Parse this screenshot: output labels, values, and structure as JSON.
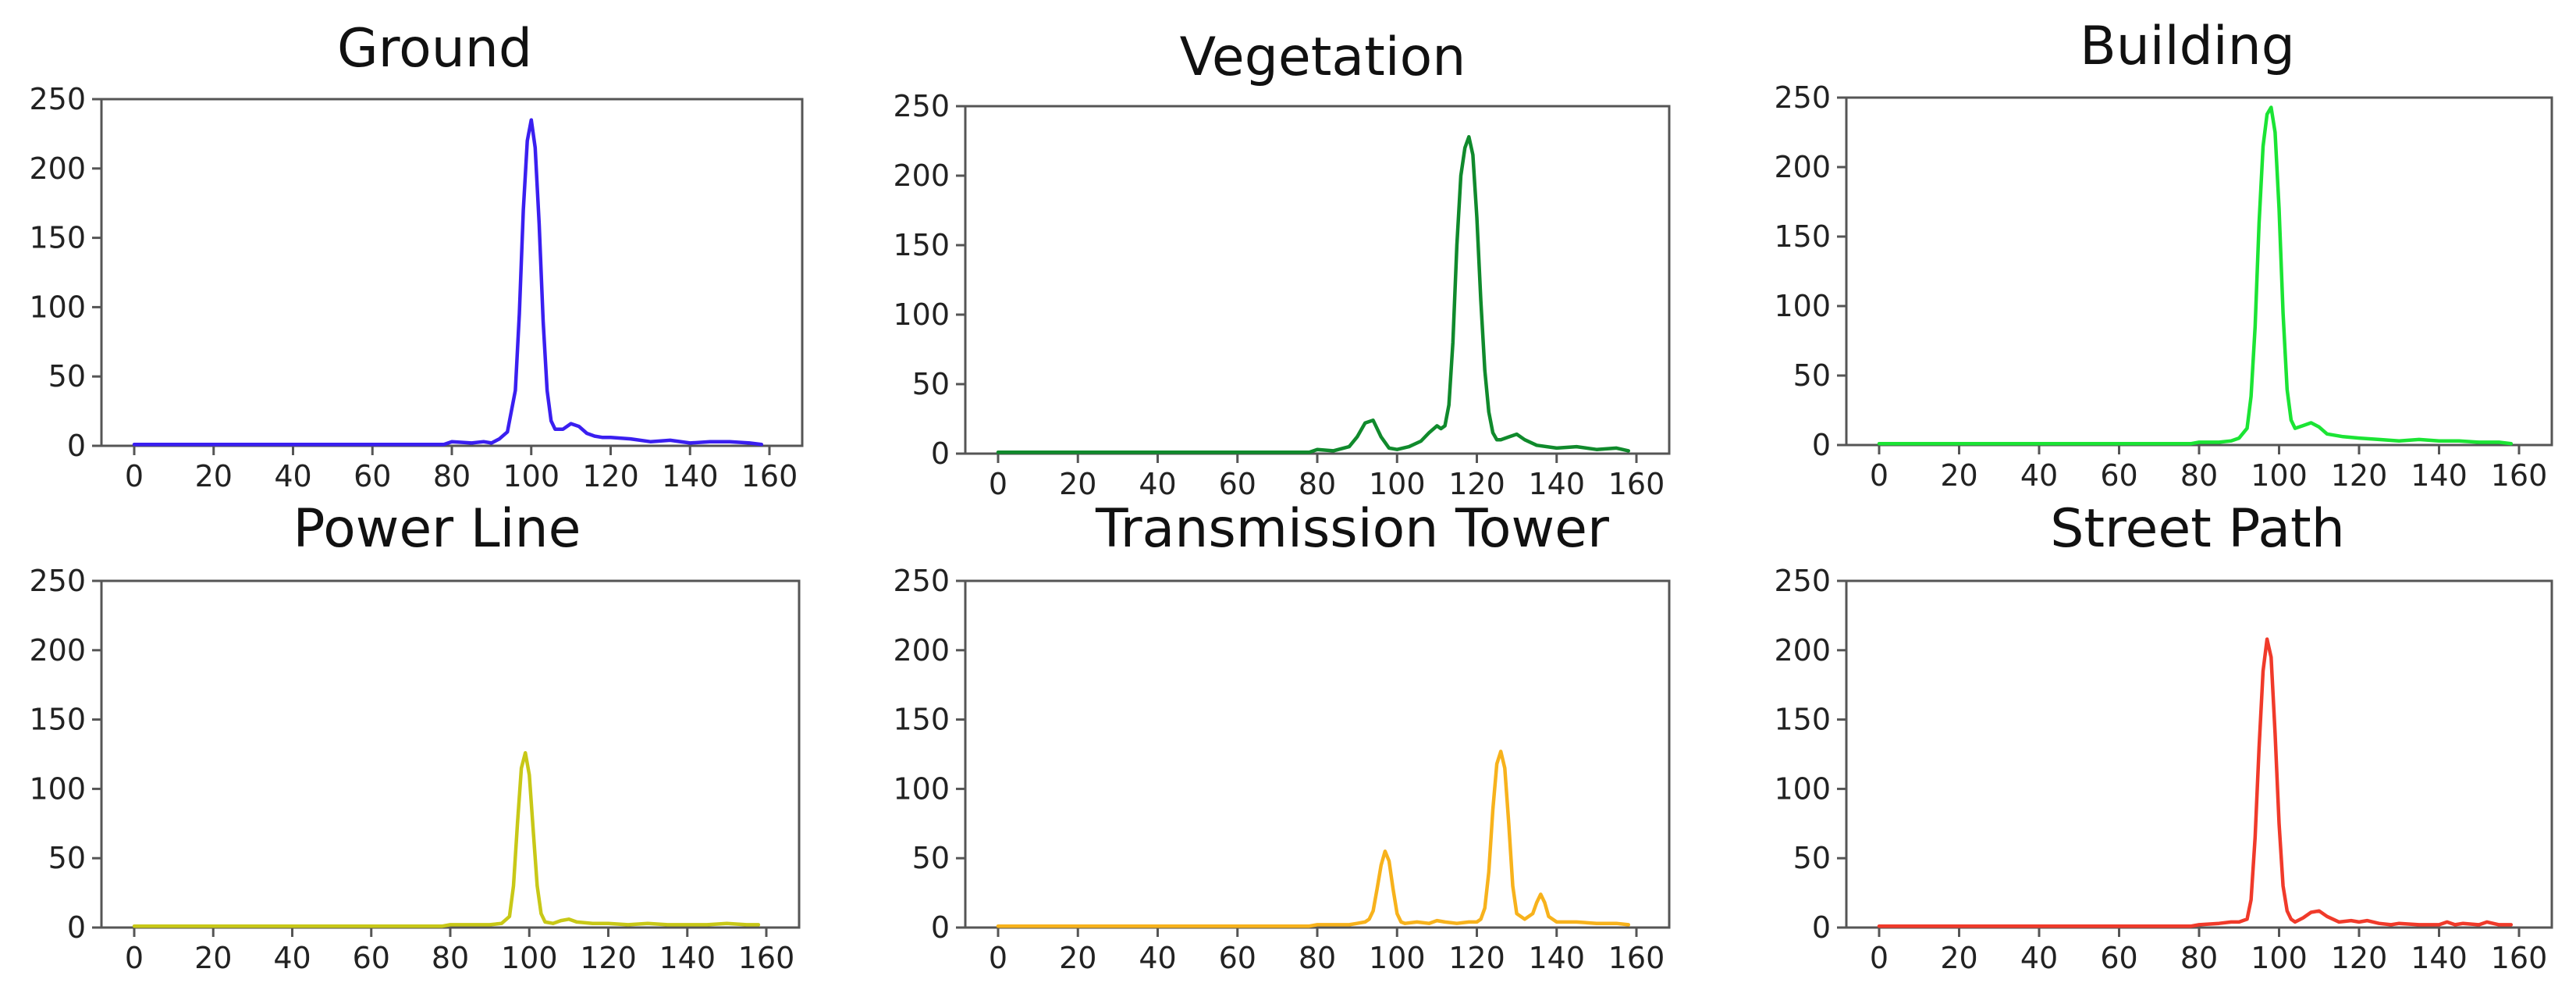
{
  "chart_data": [
    {
      "type": "line",
      "title": "Ground",
      "color": "#3a1ff0",
      "xlim": [
        0,
        160
      ],
      "ylim": [
        0,
        250
      ],
      "xticks": [
        0,
        20,
        40,
        60,
        80,
        100,
        120,
        140,
        160
      ],
      "yticks": [
        0,
        50,
        100,
        150,
        200,
        250
      ],
      "x": [
        0,
        20,
        40,
        60,
        78,
        80,
        85,
        88,
        90,
        92,
        94,
        96,
        97,
        98,
        99,
        100,
        101,
        102,
        103,
        104,
        105,
        106,
        108,
        110,
        112,
        114,
        116,
        118,
        120,
        125,
        130,
        135,
        140,
        145,
        150,
        155,
        158
      ],
      "y": [
        1,
        1,
        1,
        1,
        1,
        3,
        2,
        3,
        2,
        5,
        10,
        40,
        95,
        170,
        220,
        235,
        215,
        160,
        90,
        40,
        18,
        12,
        12,
        16,
        14,
        9,
        7,
        6,
        6,
        5,
        3,
        4,
        2,
        3,
        3,
        2,
        1
      ]
    },
    {
      "type": "line",
      "title": "Vegetation",
      "color": "#108a2c",
      "xlim": [
        0,
        160
      ],
      "ylim": [
        0,
        250
      ],
      "xticks": [
        0,
        20,
        40,
        60,
        80,
        100,
        120,
        140,
        160
      ],
      "yticks": [
        0,
        50,
        100,
        150,
        200,
        250
      ],
      "x": [
        0,
        20,
        40,
        60,
        78,
        80,
        84,
        88,
        90,
        92,
        94,
        96,
        98,
        100,
        103,
        106,
        108,
        110,
        111,
        112,
        113,
        114,
        115,
        116,
        117,
        118,
        119,
        120,
        121,
        122,
        123,
        124,
        125,
        126,
        128,
        130,
        132,
        135,
        140,
        145,
        150,
        155,
        158
      ],
      "y": [
        1,
        1,
        1,
        1,
        1,
        3,
        2,
        5,
        12,
        22,
        24,
        12,
        4,
        3,
        5,
        9,
        15,
        20,
        18,
        20,
        35,
        80,
        150,
        200,
        220,
        228,
        215,
        170,
        110,
        60,
        30,
        15,
        10,
        10,
        12,
        14,
        10,
        6,
        4,
        5,
        3,
        4,
        2
      ]
    },
    {
      "type": "line",
      "title": "Building",
      "color": "#1be434",
      "xlim": [
        0,
        160
      ],
      "ylim": [
        0,
        250
      ],
      "xticks": [
        0,
        20,
        40,
        60,
        80,
        100,
        120,
        140,
        160
      ],
      "yticks": [
        0,
        50,
        100,
        150,
        200,
        250
      ],
      "x": [
        0,
        20,
        40,
        60,
        78,
        80,
        85,
        88,
        90,
        92,
        93,
        94,
        95,
        96,
        97,
        98,
        99,
        100,
        101,
        102,
        103,
        104,
        106,
        108,
        110,
        112,
        116,
        120,
        125,
        130,
        135,
        140,
        145,
        150,
        155,
        158
      ],
      "y": [
        1,
        1,
        1,
        1,
        1,
        2,
        2,
        3,
        5,
        12,
        35,
        85,
        160,
        215,
        238,
        243,
        225,
        170,
        95,
        40,
        18,
        12,
        14,
        16,
        13,
        8,
        6,
        5,
        4,
        3,
        4,
        3,
        3,
        2,
        2,
        1
      ]
    },
    {
      "type": "line",
      "title": "Power Line",
      "color": "#c8c817",
      "xlim": [
        0,
        160
      ],
      "ylim": [
        0,
        250
      ],
      "xticks": [
        0,
        20,
        40,
        60,
        80,
        100,
        120,
        140,
        160
      ],
      "yticks": [
        0,
        50,
        100,
        150,
        200,
        250
      ],
      "x": [
        0,
        20,
        40,
        60,
        78,
        80,
        85,
        90,
        93,
        95,
        96,
        97,
        98,
        99,
        100,
        101,
        102,
        103,
        104,
        106,
        108,
        110,
        112,
        116,
        120,
        125,
        130,
        135,
        140,
        145,
        150,
        155,
        158
      ],
      "y": [
        1,
        1,
        1,
        1,
        1,
        2,
        2,
        2,
        3,
        8,
        30,
        75,
        115,
        126,
        110,
        70,
        30,
        10,
        4,
        3,
        5,
        6,
        4,
        3,
        3,
        2,
        3,
        2,
        2,
        2,
        3,
        2,
        2
      ]
    },
    {
      "type": "line",
      "title": "Transmission Tower",
      "color": "#f7b21c",
      "xlim": [
        0,
        160
      ],
      "ylim": [
        0,
        250
      ],
      "xticks": [
        0,
        20,
        40,
        60,
        80,
        100,
        120,
        140,
        160
      ],
      "yticks": [
        0,
        50,
        100,
        150,
        200,
        250
      ],
      "x": [
        0,
        20,
        40,
        60,
        78,
        80,
        85,
        88,
        90,
        92,
        93,
        94,
        95,
        96,
        97,
        98,
        99,
        100,
        101,
        102,
        105,
        108,
        110,
        112,
        115,
        118,
        120,
        121,
        122,
        123,
        124,
        125,
        126,
        127,
        128,
        129,
        130,
        132,
        134,
        135,
        136,
        137,
        138,
        140,
        145,
        150,
        155,
        158
      ],
      "y": [
        1,
        1,
        1,
        1,
        1,
        2,
        2,
        2,
        3,
        4,
        6,
        12,
        28,
        45,
        55,
        48,
        28,
        10,
        4,
        3,
        4,
        3,
        5,
        4,
        3,
        4,
        4,
        6,
        14,
        40,
        85,
        118,
        127,
        115,
        75,
        30,
        10,
        6,
        10,
        18,
        24,
        18,
        8,
        4,
        4,
        3,
        3,
        2
      ]
    },
    {
      "type": "line",
      "title": "Street Path",
      "color": "#f03a2a",
      "xlim": [
        0,
        160
      ],
      "ylim": [
        0,
        250
      ],
      "xticks": [
        0,
        20,
        40,
        60,
        80,
        100,
        120,
        140,
        160
      ],
      "yticks": [
        0,
        50,
        100,
        150,
        200,
        250
      ],
      "x": [
        0,
        20,
        40,
        60,
        78,
        80,
        85,
        88,
        90,
        92,
        93,
        94,
        95,
        96,
        97,
        98,
        99,
        100,
        101,
        102,
        103,
        104,
        106,
        108,
        110,
        112,
        115,
        118,
        120,
        122,
        125,
        128,
        130,
        135,
        140,
        142,
        144,
        146,
        150,
        152,
        155,
        158
      ],
      "y": [
        1,
        1,
        1,
        1,
        1,
        2,
        3,
        4,
        4,
        6,
        20,
        65,
        130,
        185,
        208,
        195,
        140,
        75,
        30,
        12,
        6,
        4,
        7,
        11,
        12,
        8,
        4,
        5,
        4,
        5,
        3,
        2,
        3,
        2,
        2,
        4,
        2,
        3,
        2,
        4,
        2,
        2
      ]
    }
  ]
}
